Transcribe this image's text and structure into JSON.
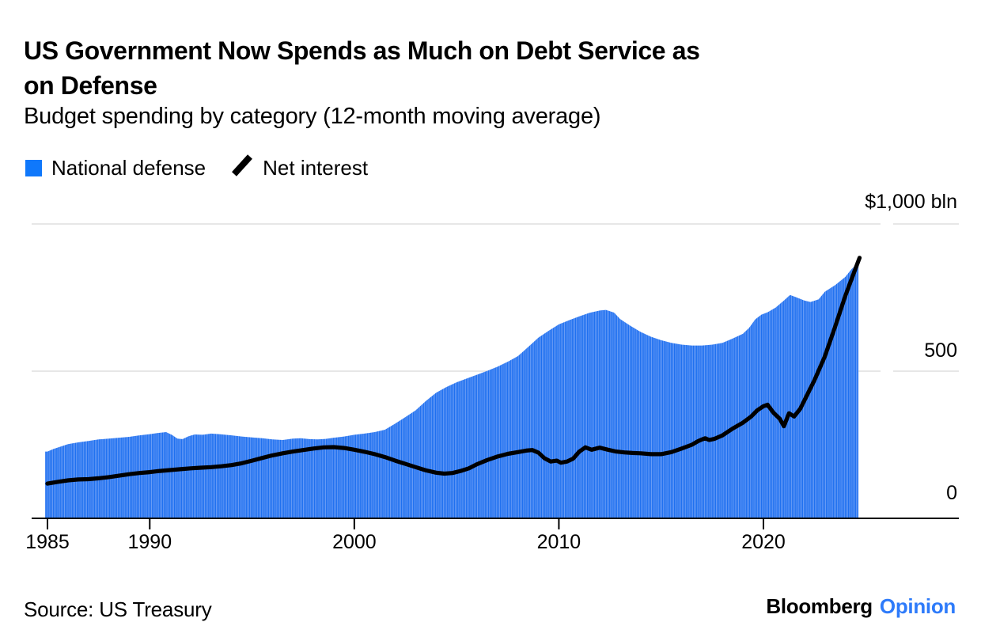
{
  "header": {
    "title_line1": "US Government Now Spends as Much on Debt Service as",
    "title_line2": "on Defense",
    "subtitle": "Budget spending by category (12-month moving average)"
  },
  "footer": {
    "source": "Source: US Treasury",
    "brand": "Bloomberg",
    "brand_suffix": "Opinion"
  },
  "colors": {
    "accent_blue": "#0f78fb",
    "bar_stripe_dark": "#1e70f0",
    "bar_stripe_light": "#7fa9f7",
    "line_black": "#000000",
    "grid_gray": "#e7e7e7",
    "opinion_blue": "#2e7bfa"
  },
  "chart_data": {
    "type": "combo",
    "title": "US Government Now Spends as Much on Debt Service as on Defense",
    "subtitle": "Budget spending by category (12-month moving average)",
    "unit": "$ bln",
    "y_axis": {
      "tick_labels": [
        "$1,000 bln",
        "500",
        "0"
      ],
      "tick_values": [
        1000,
        500,
        0
      ],
      "max": 1000,
      "grid": true
    },
    "x_axis": {
      "tick_years": [
        1985,
        1990,
        2000,
        2010,
        2020
      ],
      "start": 1985,
      "end": 2024.7
    },
    "legend_position": "top-left",
    "series": [
      {
        "name": "National defense",
        "type": "bar",
        "color": "#0f78fb",
        "points": [
          [
            1985.0,
            227
          ],
          [
            1985.3,
            236
          ],
          [
            1985.7,
            245
          ],
          [
            1986.0,
            252
          ],
          [
            1986.5,
            258
          ],
          [
            1987.0,
            263
          ],
          [
            1987.5,
            268
          ],
          [
            1988.0,
            271
          ],
          [
            1988.5,
            274
          ],
          [
            1989.0,
            277
          ],
          [
            1989.5,
            282
          ],
          [
            1990.0,
            286
          ],
          [
            1990.4,
            290
          ],
          [
            1990.8,
            293
          ],
          [
            1991.1,
            283
          ],
          [
            1991.35,
            271
          ],
          [
            1991.6,
            269
          ],
          [
            1991.9,
            279
          ],
          [
            1992.2,
            285
          ],
          [
            1992.6,
            284
          ],
          [
            1993.0,
            288
          ],
          [
            1993.4,
            286
          ],
          [
            1994.0,
            282
          ],
          [
            1994.5,
            278
          ],
          [
            1995.0,
            275
          ],
          [
            1995.5,
            272
          ],
          [
            1996.0,
            268
          ],
          [
            1996.5,
            266
          ],
          [
            1997.0,
            271
          ],
          [
            1997.4,
            272
          ],
          [
            1997.8,
            269
          ],
          [
            1998.2,
            268
          ],
          [
            1998.6,
            270
          ],
          [
            1999.0,
            274
          ],
          [
            1999.5,
            278
          ],
          [
            2000.0,
            284
          ],
          [
            2000.5,
            288
          ],
          [
            2001.0,
            293
          ],
          [
            2001.5,
            301
          ],
          [
            2002.0,
            322
          ],
          [
            2002.5,
            344
          ],
          [
            2003.0,
            367
          ],
          [
            2003.5,
            399
          ],
          [
            2004.0,
            427
          ],
          [
            2004.5,
            446
          ],
          [
            2005.0,
            462
          ],
          [
            2005.5,
            475
          ],
          [
            2006.0,
            488
          ],
          [
            2006.5,
            501
          ],
          [
            2007.0,
            515
          ],
          [
            2007.5,
            532
          ],
          [
            2008.0,
            551
          ],
          [
            2008.5,
            582
          ],
          [
            2009.0,
            614
          ],
          [
            2009.5,
            637
          ],
          [
            2010.0,
            659
          ],
          [
            2010.5,
            673
          ],
          [
            2011.0,
            686
          ],
          [
            2011.5,
            698
          ],
          [
            2012.0,
            706
          ],
          [
            2012.3,
            708
          ],
          [
            2012.7,
            699
          ],
          [
            2013.0,
            677
          ],
          [
            2013.5,
            654
          ],
          [
            2014.0,
            633
          ],
          [
            2014.5,
            617
          ],
          [
            2015.0,
            605
          ],
          [
            2015.5,
            596
          ],
          [
            2016.0,
            590
          ],
          [
            2016.5,
            587
          ],
          [
            2017.0,
            587
          ],
          [
            2017.5,
            590
          ],
          [
            2018.0,
            596
          ],
          [
            2018.5,
            611
          ],
          [
            2019.0,
            627
          ],
          [
            2019.3,
            647
          ],
          [
            2019.6,
            676
          ],
          [
            2019.9,
            692
          ],
          [
            2020.2,
            700
          ],
          [
            2020.6,
            716
          ],
          [
            2021.0,
            740
          ],
          [
            2021.3,
            759
          ],
          [
            2021.6,
            751
          ],
          [
            2022.0,
            740
          ],
          [
            2022.3,
            735
          ],
          [
            2022.7,
            744
          ],
          [
            2023.0,
            770
          ],
          [
            2023.5,
            792
          ],
          [
            2024.0,
            820
          ],
          [
            2024.3,
            846
          ],
          [
            2024.65,
            869
          ]
        ]
      },
      {
        "name": "Net interest",
        "type": "line",
        "color": "#000000",
        "points": [
          [
            1985.0,
            118
          ],
          [
            1985.5,
            124
          ],
          [
            1986.0,
            129
          ],
          [
            1986.5,
            132
          ],
          [
            1987.0,
            133
          ],
          [
            1987.5,
            136
          ],
          [
            1988.0,
            140
          ],
          [
            1988.5,
            145
          ],
          [
            1989.0,
            150
          ],
          [
            1989.5,
            154
          ],
          [
            1990.0,
            157
          ],
          [
            1990.5,
            161
          ],
          [
            1991.0,
            164
          ],
          [
            1991.5,
            167
          ],
          [
            1992.0,
            170
          ],
          [
            1992.5,
            172
          ],
          [
            1993.0,
            174
          ],
          [
            1993.5,
            177
          ],
          [
            1994.0,
            181
          ],
          [
            1994.5,
            187
          ],
          [
            1995.0,
            196
          ],
          [
            1995.5,
            205
          ],
          [
            1996.0,
            214
          ],
          [
            1996.5,
            221
          ],
          [
            1997.0,
            227
          ],
          [
            1997.5,
            232
          ],
          [
            1998.0,
            237
          ],
          [
            1998.5,
            241
          ],
          [
            1999.0,
            242
          ],
          [
            1999.5,
            239
          ],
          [
            2000.0,
            233
          ],
          [
            2000.5,
            226
          ],
          [
            2001.0,
            218
          ],
          [
            2001.5,
            208
          ],
          [
            2002.0,
            196
          ],
          [
            2002.5,
            185
          ],
          [
            2003.0,
            174
          ],
          [
            2003.5,
            163
          ],
          [
            2004.0,
            155
          ],
          [
            2004.4,
            152
          ],
          [
            2004.8,
            154
          ],
          [
            2005.2,
            161
          ],
          [
            2005.6,
            170
          ],
          [
            2006.0,
            184
          ],
          [
            2006.5,
            198
          ],
          [
            2007.0,
            210
          ],
          [
            2007.5,
            219
          ],
          [
            2008.0,
            225
          ],
          [
            2008.4,
            230
          ],
          [
            2008.7,
            232
          ],
          [
            2009.0,
            223
          ],
          [
            2009.3,
            204
          ],
          [
            2009.6,
            193
          ],
          [
            2009.9,
            196
          ],
          [
            2010.1,
            189
          ],
          [
            2010.4,
            193
          ],
          [
            2010.7,
            203
          ],
          [
            2011.0,
            227
          ],
          [
            2011.3,
            241
          ],
          [
            2011.6,
            233
          ],
          [
            2012.0,
            240
          ],
          [
            2012.4,
            233
          ],
          [
            2012.8,
            227
          ],
          [
            2013.2,
            224
          ],
          [
            2013.6,
            222
          ],
          [
            2014.0,
            221
          ],
          [
            2014.5,
            218
          ],
          [
            2015.0,
            218
          ],
          [
            2015.5,
            225
          ],
          [
            2016.0,
            237
          ],
          [
            2016.5,
            250
          ],
          [
            2016.8,
            262
          ],
          [
            2017.0,
            268
          ],
          [
            2017.15,
            272
          ],
          [
            2017.35,
            266
          ],
          [
            2017.6,
            270
          ],
          [
            2018.0,
            282
          ],
          [
            2018.5,
            305
          ],
          [
            2019.0,
            325
          ],
          [
            2019.4,
            346
          ],
          [
            2019.7,
            367
          ],
          [
            2020.0,
            381
          ],
          [
            2020.2,
            386
          ],
          [
            2020.5,
            358
          ],
          [
            2020.8,
            338
          ],
          [
            2021.0,
            313
          ],
          [
            2021.25,
            357
          ],
          [
            2021.5,
            346
          ],
          [
            2021.8,
            372
          ],
          [
            2022.0,
            400
          ],
          [
            2022.5,
            470
          ],
          [
            2023.0,
            550
          ],
          [
            2023.5,
            650
          ],
          [
            2024.0,
            755
          ],
          [
            2024.4,
            830
          ],
          [
            2024.7,
            885
          ]
        ]
      }
    ]
  }
}
